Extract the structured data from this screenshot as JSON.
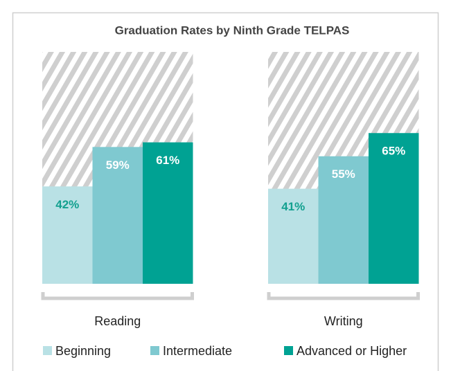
{
  "chart_data": {
    "type": "bar",
    "title": "Graduation Rates by Ninth Grade TELPAS",
    "categories": [
      "Reading",
      "Writing"
    ],
    "ylim": [
      0,
      100
    ],
    "series": [
      {
        "name": "Beginning",
        "color": "#b9e1e5",
        "label_color": "#12a08f",
        "values": [
          42,
          41
        ],
        "value_labels": [
          "42%",
          "41%"
        ]
      },
      {
        "name": "Intermediate",
        "color": "#7fc9d0",
        "label_color": "#ffffff",
        "values": [
          59,
          55
        ],
        "value_labels": [
          "59%",
          "55%"
        ]
      },
      {
        "name": "Advanced or Higher",
        "color": "#00a293",
        "label_color": "#ffffff",
        "values": [
          61,
          65
        ],
        "value_labels": [
          "61%",
          "65%"
        ]
      }
    ]
  }
}
